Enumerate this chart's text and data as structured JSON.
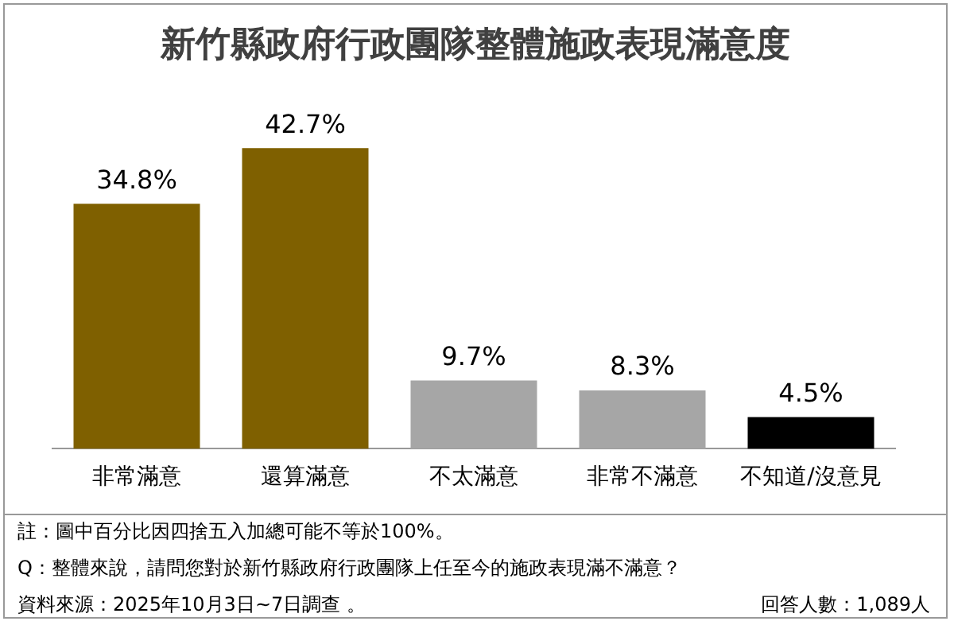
{
  "chart_data": {
    "type": "bar",
    "title": "新竹縣政府行政團隊整體施政表現滿意度",
    "categories": [
      "非常滿意",
      "還算滿意",
      "不太滿意",
      "非常不滿意",
      "不知道/沒意見"
    ],
    "values": [
      34.8,
      42.7,
      9.7,
      8.3,
      4.5
    ],
    "colors": [
      "#7f6000",
      "#7f6000",
      "#a6a6a6",
      "#a6a6a6",
      "#000000"
    ],
    "value_labels": [
      "34.8%",
      "42.7%",
      "9.7%",
      "8.3%",
      "4.5%"
    ],
    "grid": false,
    "legend": false,
    "annotations": [
      "註：圖中百分比因四捨五入加總可能不等於100%。",
      "Q：整體來說，請問您對於新竹縣政府行政團隊上任至今的施政表現滿不滿意？",
      "資料來源：2025年10月3日~7日調查 。",
      "回答人數：1,089人"
    ]
  }
}
